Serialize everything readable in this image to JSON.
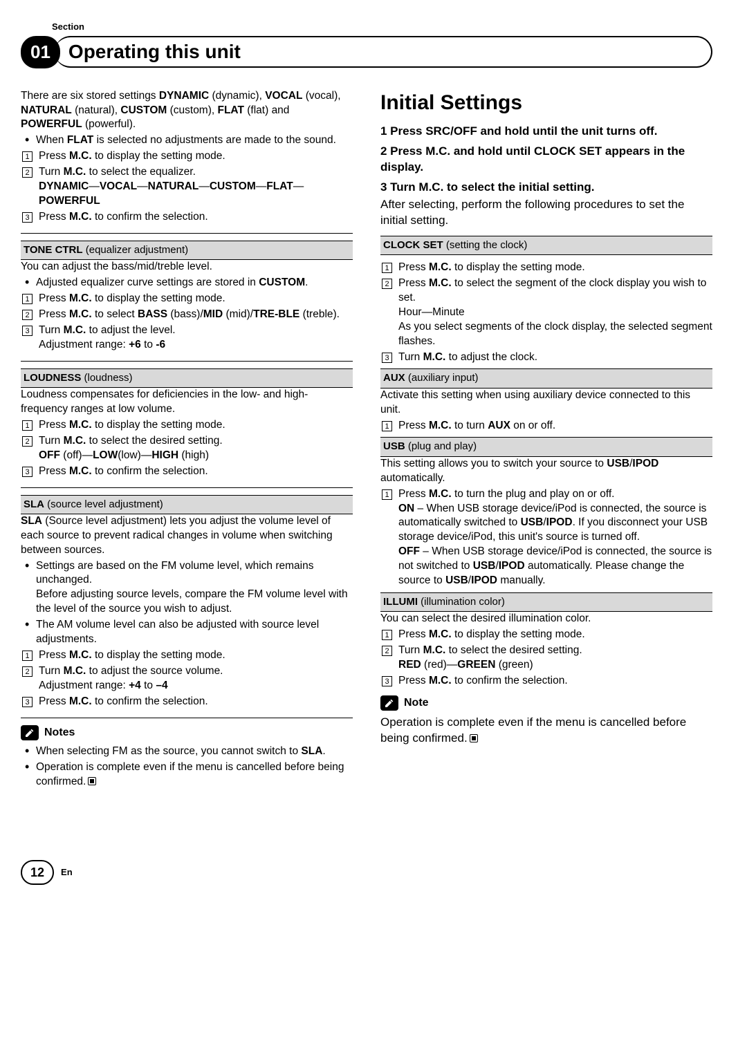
{
  "meta": {
    "section_label": "Section",
    "section_num": "01",
    "title": "Operating this unit",
    "page_num": "12",
    "lang": "En"
  },
  "colors": {
    "header_bg": "#d9d9d9",
    "text": "#000000",
    "bg": "#ffffff"
  },
  "left": {
    "intro_html": "There are six stored settings <b>DYNAMIC</b> (dynamic), <b>VOCAL</b> (vocal), <b>NATURAL</b> (natural), <b>CUSTOM</b> (custom), <b>FLAT</b> (flat) and <b>POWERFUL</b> (powerful).",
    "intro_bullet_html": "When <b>FLAT</b> is selected no adjustments are made to the sound.",
    "intro_steps": [
      "Press <b>M.C.</b> to display the setting mode.",
      "Turn <b>M.C.</b> to select the equalizer.<br><b>DYNAMIC</b>—<b>VOCAL</b>—<b>NATURAL</b>—<b>CUSTOM</b>—<b>FLAT</b>—<b>POWERFUL</b>",
      "Press <b>M.C.</b> to confirm the selection."
    ],
    "tone": {
      "hdr_html": "<b>TONE CTRL</b> (equalizer adjustment)",
      "desc": "You can adjust the bass/mid/treble level.",
      "bullet_html": "Adjusted equalizer curve settings are stored in <b>CUSTOM</b>.",
      "steps": [
        "Press <b>M.C.</b> to display the setting mode.",
        "Press <b>M.C.</b> to select <b>BASS</b> (bass)/<b>MID</b> (mid)/<b>TRE-BLE</b> (treble).",
        "Turn <b>M.C.</b> to adjust the level.<br>Adjustment range: <b>+6</b> to <b>-6</b>"
      ]
    },
    "loud": {
      "hdr_html": "<b>LOUDNESS</b> (loudness)",
      "desc": "Loudness compensates for deficiencies in the low- and high-frequency ranges at low volume.",
      "steps": [
        "Press <b>M.C.</b> to display the setting mode.",
        "Turn <b>M.C.</b> to select the desired setting.<br><b>OFF</b> (off)—<b>LOW</b>(low)—<b>HIGH</b> (high)",
        "Press <b>M.C.</b> to confirm the selection."
      ]
    },
    "sla": {
      "hdr_html": "<b>SLA</b> (source level adjustment)",
      "desc_html": "<b>SLA</b> (Source level adjustment) lets you adjust the volume level of each source to prevent radical changes in volume when switching between sources.",
      "bullets": [
        "Settings are based on the FM volume level, which remains unchanged.<br>Before adjusting source levels, compare the FM volume level with the level of the source you wish to adjust.",
        "The AM volume level can also be adjusted with source level adjustments."
      ],
      "steps": [
        "Press <b>M.C.</b> to display the setting mode.",
        "Turn <b>M.C.</b> to adjust the source volume.<br>Adjustment range: <b>+4</b> to <b>–4</b>",
        "Press <b>M.C.</b> to confirm the selection."
      ]
    },
    "notes": {
      "title": "Notes",
      "items": [
        "When selecting FM as the source, you cannot switch to <b>SLA</b>.",
        "Operation is complete even if the menu is cancelled before being confirmed."
      ]
    }
  },
  "right": {
    "h2": "Initial Settings",
    "steps_bold": [
      "1    Press SRC/OFF and hold until the unit turns off.",
      "2    Press M.C. and hold until CLOCK SET appears in the display.",
      "3    Turn M.C. to select the initial setting."
    ],
    "after": "After selecting, perform the following procedures to set the initial setting.",
    "clock": {
      "hdr_html": "<b>CLOCK SET</b> (setting the clock)",
      "steps": [
        "Press <b>M.C.</b> to display the setting mode.",
        "Press <b>M.C.</b> to select the segment of the clock display you wish to set.<br>Hour—Minute<br>As you select segments of the clock display, the selected segment flashes.",
        "Turn <b>M.C.</b> to adjust the clock."
      ]
    },
    "aux": {
      "hdr_html": "<b>AUX</b> (auxiliary input)",
      "desc": "Activate this setting when using auxiliary device connected to this unit.",
      "steps": [
        "Press <b>M.C.</b> to turn <b>AUX</b> on or off."
      ]
    },
    "usb": {
      "hdr_html": "<b>USB</b> (plug and play)",
      "desc_html": "This setting allows you to switch your source to <b>USB</b>/<b>IPOD</b> automatically.",
      "steps": [
        "Press <b>M.C.</b> to turn the plug and play on or off.<br><b>ON</b> – When USB storage device/iPod is connected, the source is automatically switched to <b>USB</b>/<b>IPOD</b>. If you disconnect your USB storage device/iPod, this unit's source is turned off.<br><b>OFF</b> – When USB storage device/iPod is connected, the source is not switched to <b>USB</b>/<b>IPOD</b> automatically. Please change the source to <b>USB</b>/<b>IPOD</b> manually."
      ]
    },
    "illumi": {
      "hdr_html": "<b>ILLUMI</b> (illumination color)",
      "desc": "You can select the desired illumination color.",
      "steps": [
        "Press <b>M.C.</b> to display the setting mode.",
        "Turn <b>M.C.</b> to select the desired setting.<br><b>RED</b> (red)—<b>GREEN</b> (green)",
        "Press <b>M.C.</b> to confirm the selection."
      ]
    },
    "note": {
      "title": "Note",
      "text": "Operation is complete even if the menu is cancelled before being confirmed."
    }
  }
}
